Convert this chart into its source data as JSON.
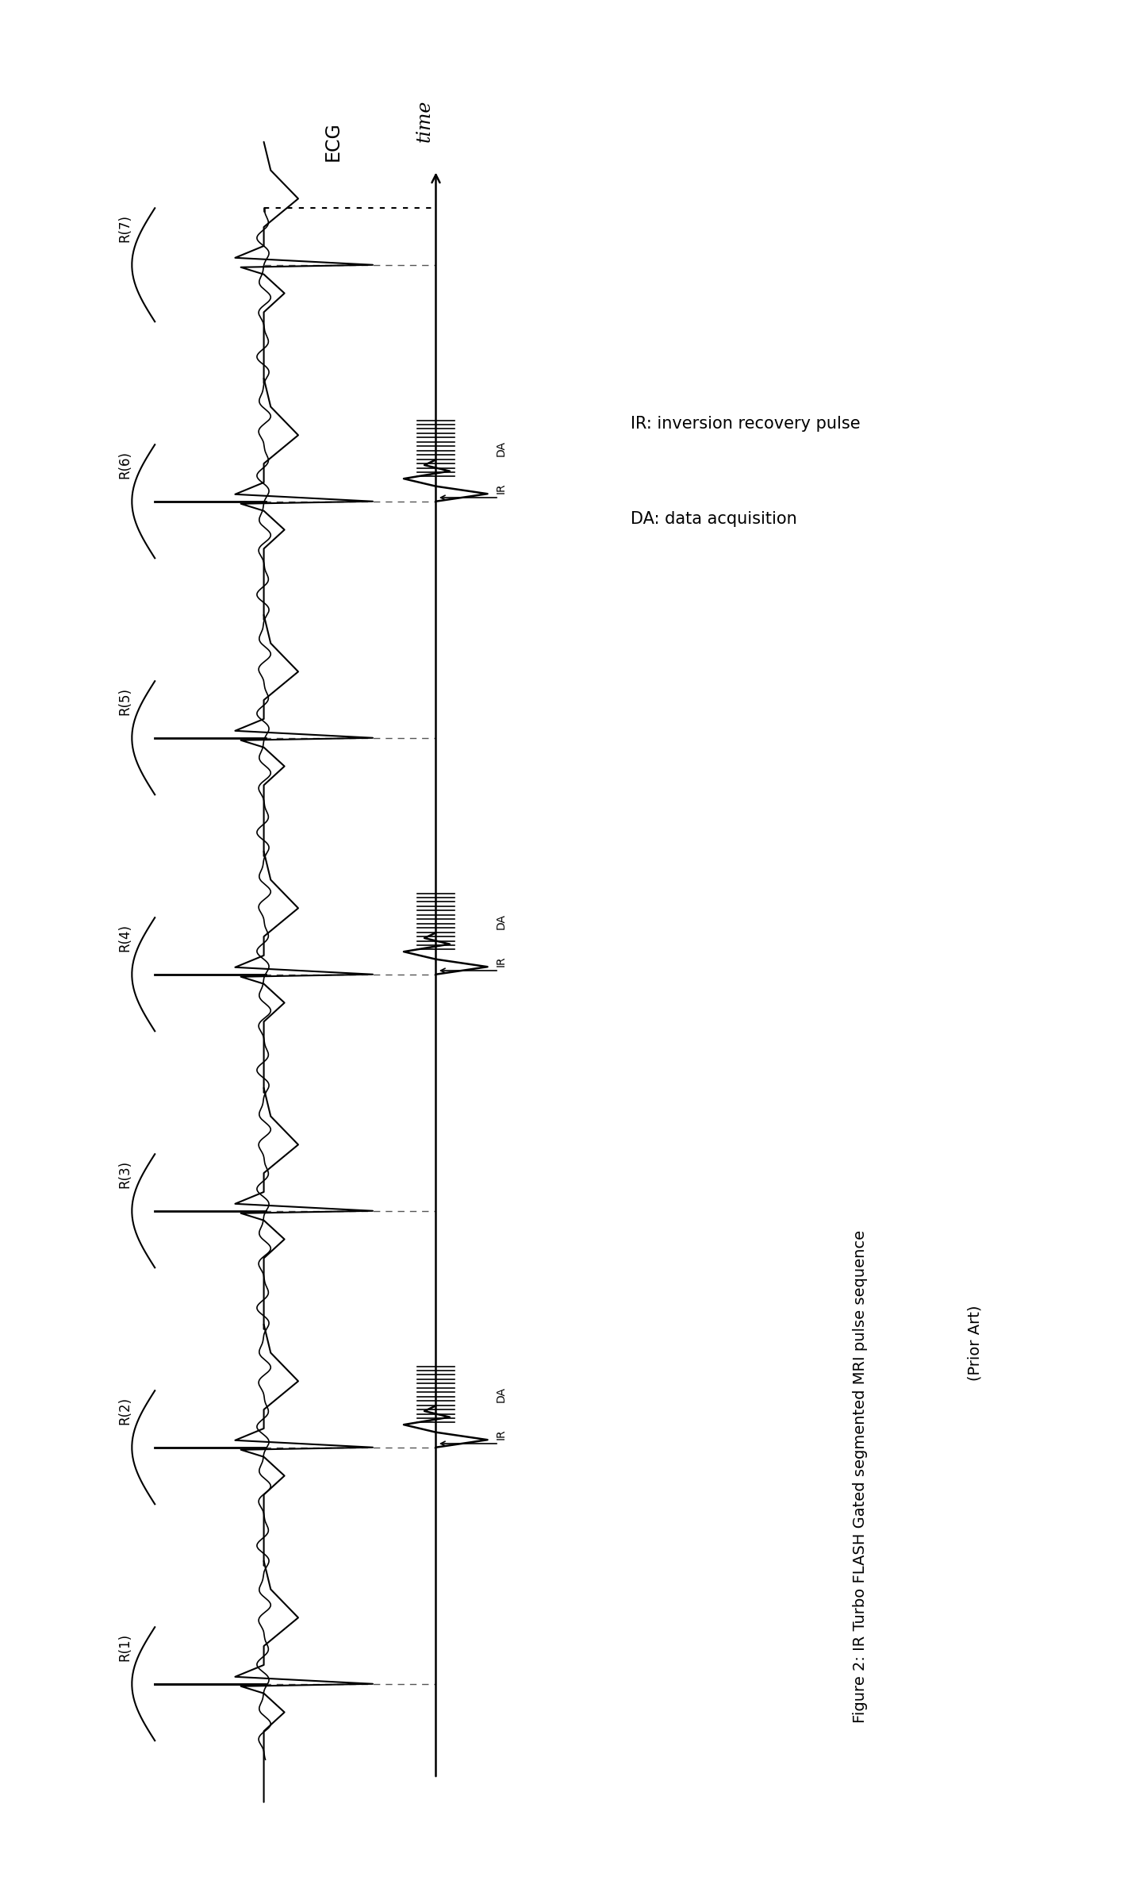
{
  "title_line1": "Figure 2: IR Turbo FLASH Gated segmented MRI pulse sequence",
  "title_line2": "(Prior Art)",
  "legend_ir": "IR: inversion recovery pulse",
  "legend_da": "DA: data acquisition",
  "ecg_label": "ECG",
  "time_label": "time",
  "r_labels": [
    "R(1)",
    "R(2)",
    "R(3)",
    "R(4)",
    "R(5)",
    "R(6)",
    "R(7)"
  ],
  "background_color": "#ffffff",
  "line_color": "#000000",
  "dashed_color": "#555555",
  "ir_da_beat_indices": [
    1,
    3,
    5
  ],
  "num_beats": 7,
  "fig_width": 14.46,
  "fig_height": 23.84
}
